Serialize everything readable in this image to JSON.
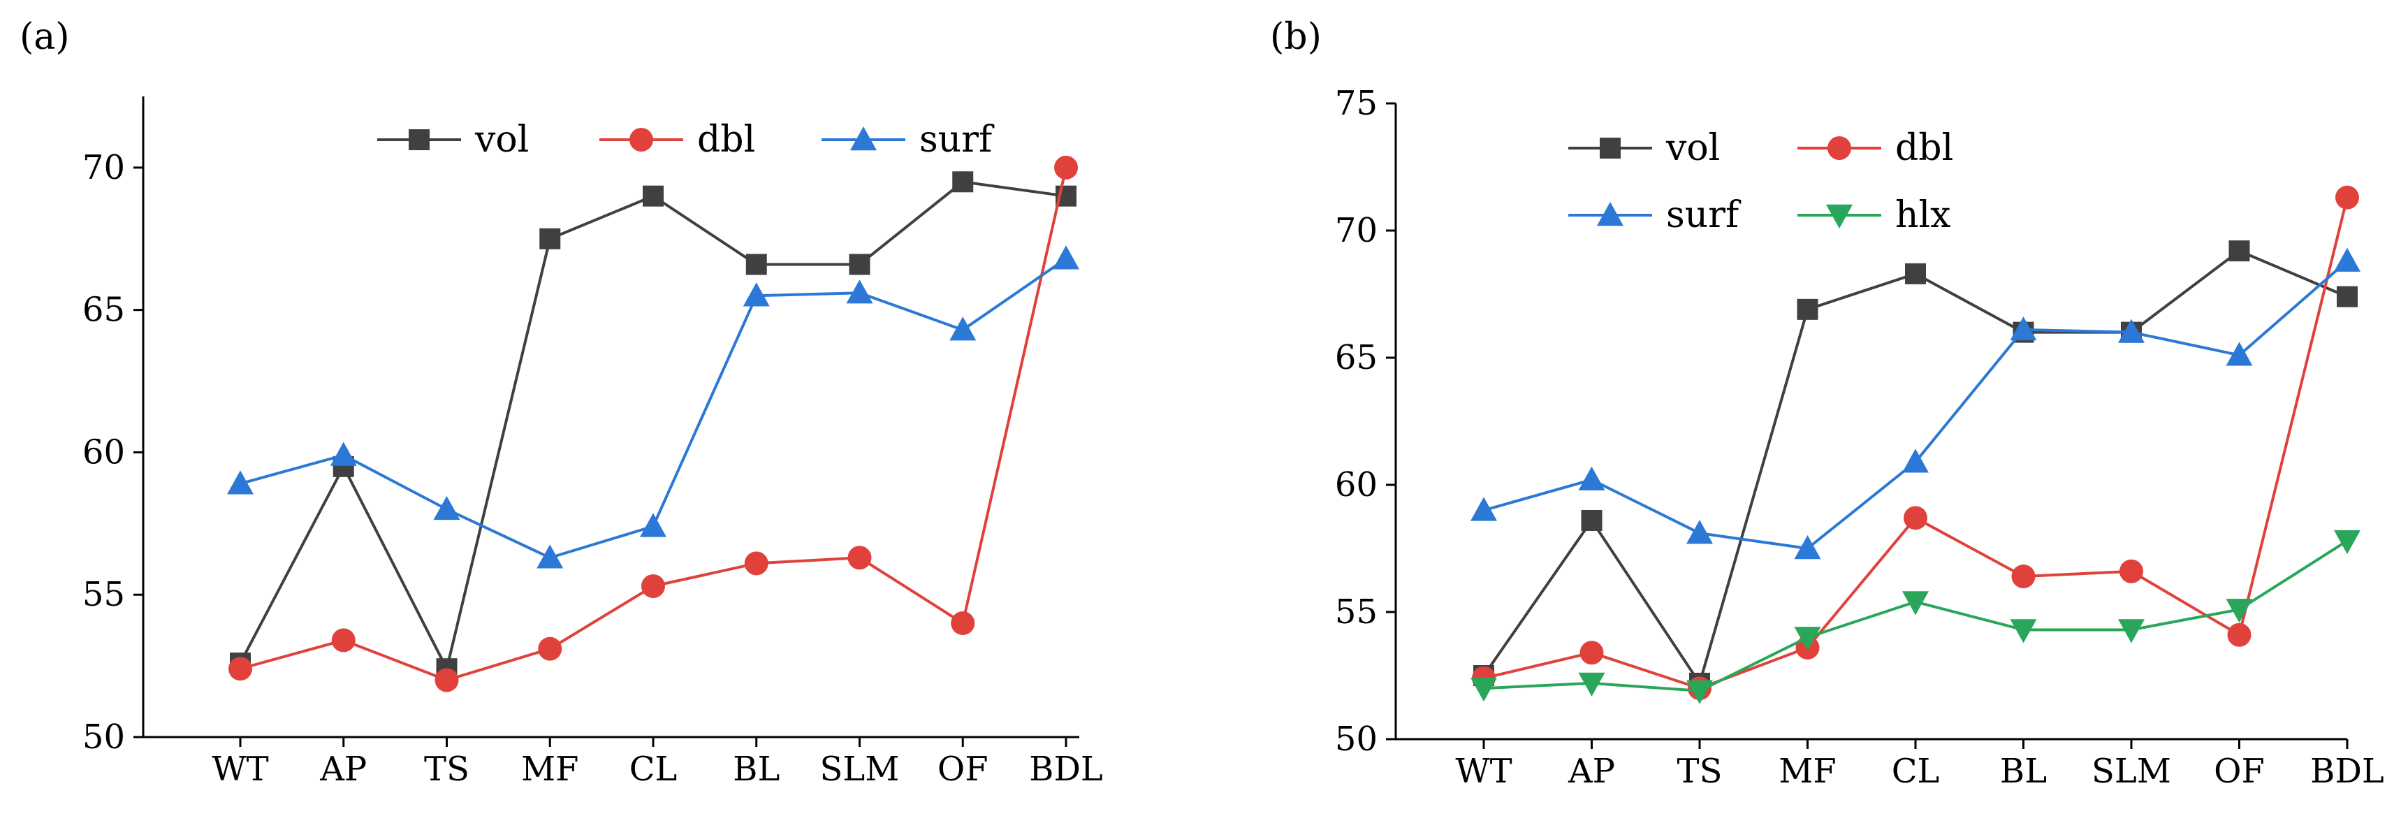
{
  "chart_data": [
    {
      "panel_label": "(a)",
      "type": "line",
      "categories": [
        "WT",
        "AP",
        "TS",
        "MF",
        "CL",
        "BL",
        "SLM",
        "OF",
        "BDL"
      ],
      "ylim": [
        50,
        72.5
      ],
      "yticks": [
        50,
        55,
        60,
        65,
        70
      ],
      "grid": false,
      "legend_position": "top-right",
      "series": [
        {
          "name": "vol",
          "color": "#404040",
          "marker": "square",
          "values": [
            52.6,
            59.5,
            52.4,
            67.5,
            69.0,
            66.6,
            66.6,
            69.5,
            69.0
          ]
        },
        {
          "name": "dbl",
          "color": "#e0413b",
          "marker": "circle",
          "values": [
            52.4,
            53.4,
            52.0,
            53.1,
            55.3,
            56.1,
            56.3,
            54.0,
            70.0
          ]
        },
        {
          "name": "surf",
          "color": "#2b78d6",
          "marker": "triangle-up",
          "values": [
            58.9,
            59.9,
            58.0,
            56.3,
            57.4,
            65.5,
            65.6,
            64.3,
            66.8
          ]
        }
      ]
    },
    {
      "panel_label": "(b)",
      "type": "line",
      "categories": [
        "WT",
        "AP",
        "TS",
        "MF",
        "CL",
        "BL",
        "SLM",
        "OF",
        "BDL"
      ],
      "ylim": [
        50,
        75
      ],
      "yticks": [
        50,
        55,
        60,
        65,
        70,
        75
      ],
      "grid": false,
      "legend_position": "top-left",
      "series": [
        {
          "name": "vol",
          "color": "#404040",
          "marker": "square",
          "values": [
            52.5,
            58.6,
            52.2,
            66.9,
            68.3,
            66.0,
            66.0,
            69.2,
            67.4
          ]
        },
        {
          "name": "dbl",
          "color": "#e0413b",
          "marker": "circle",
          "values": [
            52.4,
            53.4,
            52.0,
            53.6,
            58.7,
            56.4,
            56.6,
            54.1,
            71.3
          ]
        },
        {
          "name": "surf",
          "color": "#2b78d6",
          "marker": "triangle-up",
          "values": [
            59.0,
            60.2,
            58.1,
            57.5,
            60.9,
            66.1,
            66.0,
            65.1,
            68.8
          ]
        },
        {
          "name": "hlx",
          "color": "#2aa65a",
          "marker": "triangle-down",
          "values": [
            52.0,
            52.2,
            51.9,
            54.0,
            55.4,
            54.3,
            54.3,
            55.1,
            57.8
          ]
        }
      ]
    }
  ]
}
